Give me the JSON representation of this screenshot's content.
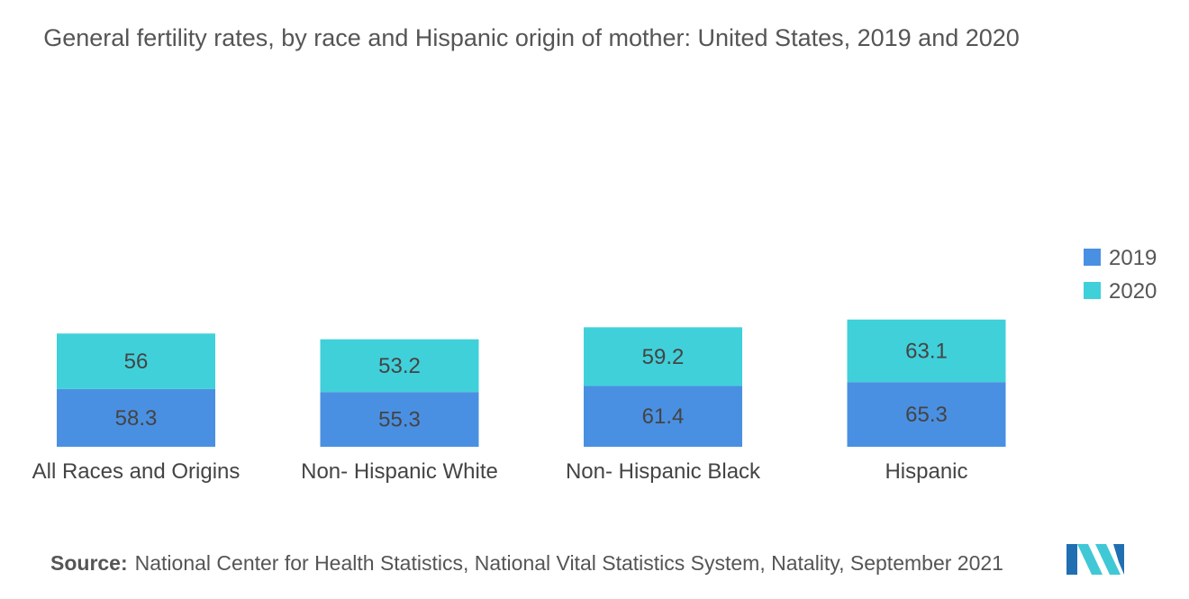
{
  "chart_data": {
    "type": "bar",
    "stacked": true,
    "title": "General fertility rates, by race and Hispanic origin of mother: United States, 2019 and 2020",
    "categories": [
      "All Races and Origins",
      "Non- Hispanic White",
      "Non- Hispanic Black",
      "Hispanic"
    ],
    "series": [
      {
        "name": "2019",
        "values": [
          58.3,
          55.3,
          61.4,
          65.3
        ],
        "color": "#4a90e2"
      },
      {
        "name": "2020",
        "values": [
          56,
          53.2,
          59.2,
          63.1
        ],
        "color": "#40d0da"
      }
    ],
    "legend_position": "right",
    "grid": false
  },
  "source": {
    "label": "Source:",
    "text": "National Center for Health Statistics, National Vital Statistics System, Natality, September 2021"
  },
  "logo_icon": "mordor-intelligence-logo-icon"
}
